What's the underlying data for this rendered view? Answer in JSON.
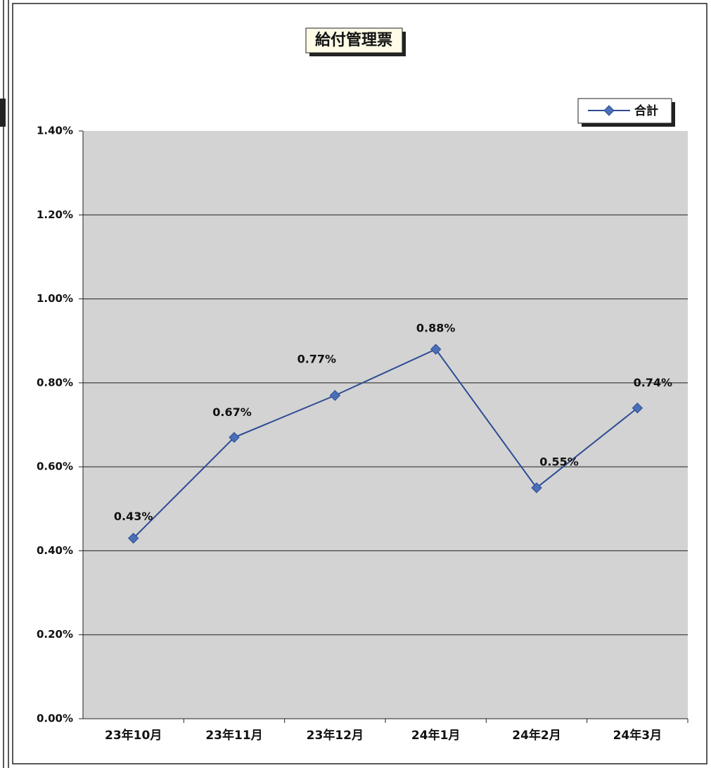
{
  "chart_data": {
    "type": "line",
    "title": "給付管理票",
    "categories": [
      "23年10月",
      "23年11月",
      "23年12月",
      "24年1月",
      "24年2月",
      "24年3月"
    ],
    "series": [
      {
        "name": "合計",
        "color": "#2e4c94",
        "values": [
          0.43,
          0.67,
          0.77,
          0.88,
          0.55,
          0.74
        ],
        "value_labels": [
          "0.43%",
          "0.67%",
          "0.77%",
          "0.88%",
          "0.55%",
          "0.74%"
        ]
      }
    ],
    "ylim": [
      0,
      1.4
    ],
    "yticks": [
      {
        "value": 0,
        "label": "0.00%"
      },
      {
        "value": 0.2,
        "label": "0.20%"
      },
      {
        "value": 0.4,
        "label": "0.40%"
      },
      {
        "value": 0.6,
        "label": "0.60%"
      },
      {
        "value": 0.8,
        "label": "0.80%"
      },
      {
        "value": 1.0,
        "label": "1.00%"
      },
      {
        "value": 1.2,
        "label": "1.20%"
      },
      {
        "value": 1.4,
        "label": "1.40%"
      }
    ],
    "grid": true,
    "legend": "top-right"
  }
}
